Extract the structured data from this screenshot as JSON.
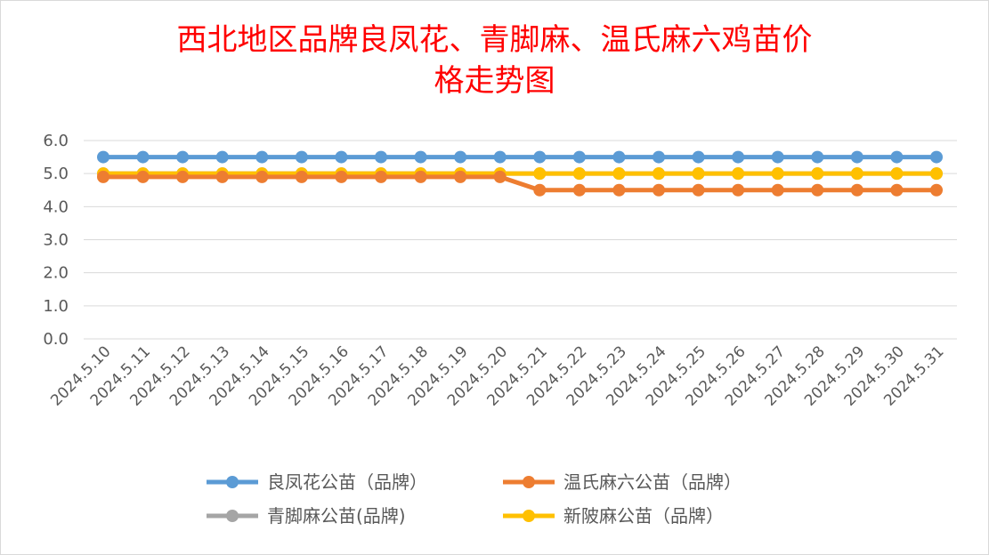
{
  "chart_data": {
    "type": "line",
    "title_lines": [
      "西北地区品牌良凤花、青脚麻、温氏麻六鸡苗价",
      "格走势图"
    ],
    "xlabel": "",
    "ylabel": "",
    "ylim": [
      0,
      6
    ],
    "yticks": [
      "0.0",
      "1.0",
      "2.0",
      "3.0",
      "4.0",
      "5.0",
      "6.0"
    ],
    "grid": true,
    "legend_position": "bottom",
    "categories": [
      "2024.5.10",
      "2024.5.11",
      "2024.5.12",
      "2024.5.13",
      "2024.5.14",
      "2024.5.15",
      "2024.5.16",
      "2024.5.17",
      "2024.5.18",
      "2024.5.19",
      "2024.5.20",
      "2024.5.21",
      "2024.5.22",
      "2024.5.23",
      "2024.5.24",
      "2024.5.25",
      "2024.5.26",
      "2024.5.27",
      "2024.5.28",
      "2024.5.29",
      "2024.5.30",
      "2024.5.31"
    ],
    "series": [
      {
        "name": "良凤花公苗（品牌）",
        "color": "#5b9bd5",
        "values": [
          5.5,
          5.5,
          5.5,
          5.5,
          5.5,
          5.5,
          5.5,
          5.5,
          5.5,
          5.5,
          5.5,
          5.5,
          5.5,
          5.5,
          5.5,
          5.5,
          5.5,
          5.5,
          5.5,
          5.5,
          5.5,
          5.5
        ]
      },
      {
        "name": "温氏麻六公苗（品牌）",
        "color": "#ed7d31",
        "values": [
          4.9,
          4.9,
          4.9,
          4.9,
          4.9,
          4.9,
          4.9,
          4.9,
          4.9,
          4.9,
          4.9,
          4.5,
          4.5,
          4.5,
          4.5,
          4.5,
          4.5,
          4.5,
          4.5,
          4.5,
          4.5,
          4.5
        ]
      },
      {
        "name": "青脚麻公苗(品牌)",
        "color": "#a5a5a5",
        "values": [
          5.0,
          5.0,
          5.0,
          5.0,
          5.0,
          5.0,
          5.0,
          5.0,
          5.0,
          5.0,
          5.0,
          5.0,
          5.0,
          5.0,
          5.0,
          5.0,
          5.0,
          5.0,
          5.0,
          5.0,
          5.0,
          5.0
        ]
      },
      {
        "name": "新陂麻公苗（品牌）",
        "color": "#ffc000",
        "values": [
          5.0,
          5.0,
          5.0,
          5.0,
          5.0,
          5.0,
          5.0,
          5.0,
          5.0,
          5.0,
          5.0,
          5.0,
          5.0,
          5.0,
          5.0,
          5.0,
          5.0,
          5.0,
          5.0,
          5.0,
          5.0,
          5.0
        ]
      }
    ],
    "legend_order": [
      0,
      1,
      2,
      3
    ]
  }
}
